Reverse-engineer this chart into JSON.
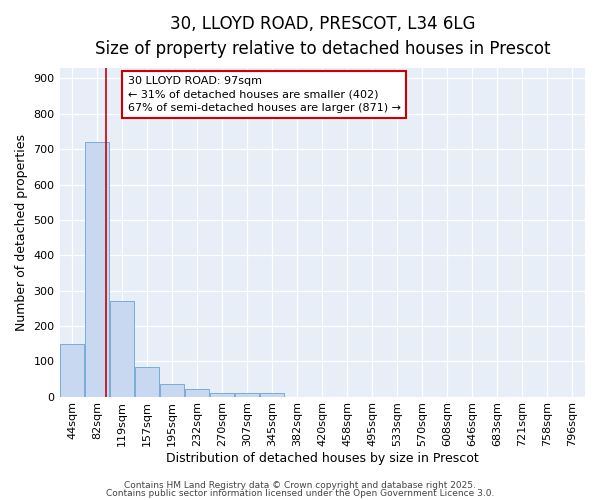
{
  "title1": "30, LLOYD ROAD, PRESCOT, L34 6LG",
  "title2": "Size of property relative to detached houses in Prescot",
  "xlabel": "Distribution of detached houses by size in Prescot",
  "ylabel": "Number of detached properties",
  "categories": [
    "44sqm",
    "82sqm",
    "119sqm",
    "157sqm",
    "195sqm",
    "232sqm",
    "270sqm",
    "307sqm",
    "345sqm",
    "382sqm",
    "420sqm",
    "458sqm",
    "495sqm",
    "533sqm",
    "570sqm",
    "608sqm",
    "646sqm",
    "683sqm",
    "721sqm",
    "758sqm",
    "796sqm"
  ],
  "values": [
    150,
    720,
    270,
    83,
    35,
    22,
    10,
    10,
    10,
    0,
    0,
    0,
    0,
    0,
    0,
    0,
    0,
    0,
    0,
    0,
    0
  ],
  "bar_color": "#c8d8f0",
  "bar_edge_color": "#7aacd6",
  "background_color": "#e8eef8",
  "grid_color": "#ffffff",
  "red_line_x": 1.35,
  "annotation_line1": "30 LLOYD ROAD: 97sqm",
  "annotation_line2": "← 31% of detached houses are smaller (402)",
  "annotation_line3": "67% of semi-detached houses are larger (871) →",
  "annotation_box_color": "#ffffff",
  "annotation_border_color": "#cc0000",
  "ylim": [
    0,
    930
  ],
  "yticks": [
    0,
    100,
    200,
    300,
    400,
    500,
    600,
    700,
    800,
    900
  ],
  "footer1": "Contains HM Land Registry data © Crown copyright and database right 2025.",
  "footer2": "Contains public sector information licensed under the Open Government Licence 3.0.",
  "title_fontsize": 12,
  "subtitle_fontsize": 10.5,
  "axis_label_fontsize": 9,
  "tick_fontsize": 8,
  "annotation_fontsize": 8,
  "footer_fontsize": 6.5
}
